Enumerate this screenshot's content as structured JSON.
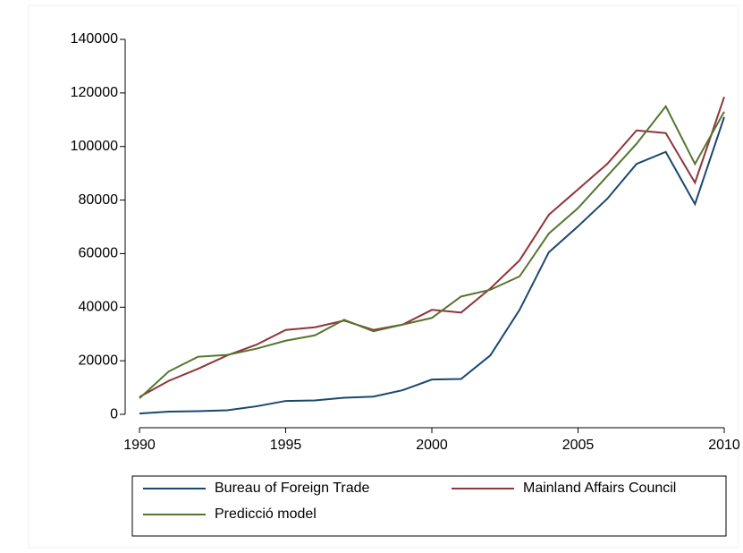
{
  "chart_data": {
    "type": "line",
    "x": [
      1990,
      1991,
      1992,
      1993,
      1994,
      1995,
      1996,
      1997,
      1998,
      1999,
      2000,
      2001,
      2002,
      2003,
      2004,
      2005,
      2006,
      2007,
      2008,
      2009,
      2010
    ],
    "series": [
      {
        "name": "Bureau of Foreign Trade",
        "color": "#1a476f",
        "values": [
          300,
          1000,
          1200,
          1500,
          3000,
          5000,
          5200,
          6200,
          6600,
          9000,
          13000,
          13200,
          22000,
          39000,
          60500,
          70200,
          80500,
          93500,
          98000,
          78500,
          111000
        ]
      },
      {
        "name": "Mainland Affairs Council",
        "color": "#90353b",
        "values": [
          6500,
          12500,
          17000,
          22000,
          26000,
          31500,
          32500,
          35000,
          31500,
          33500,
          39000,
          38000,
          47000,
          57500,
          74500,
          84000,
          93500,
          106000,
          105000,
          86500,
          118500
        ]
      },
      {
        "name": "Predicció model",
        "color": "#55752f",
        "values": [
          6000,
          16000,
          21500,
          22200,
          24500,
          27500,
          29500,
          35300,
          31000,
          33500,
          36000,
          44000,
          46500,
          51500,
          67500,
          77000,
          89000,
          101000,
          115000,
          93500,
          113000
        ]
      }
    ],
    "xlim": [
      1990,
      2010
    ],
    "xticks": [
      1990,
      1995,
      2000,
      2005,
      2010
    ],
    "ylim": [
      -5000,
      140000
    ],
    "yticks": [
      0,
      20000,
      40000,
      60000,
      80000,
      100000,
      120000,
      140000
    ],
    "legend": "bottom"
  }
}
